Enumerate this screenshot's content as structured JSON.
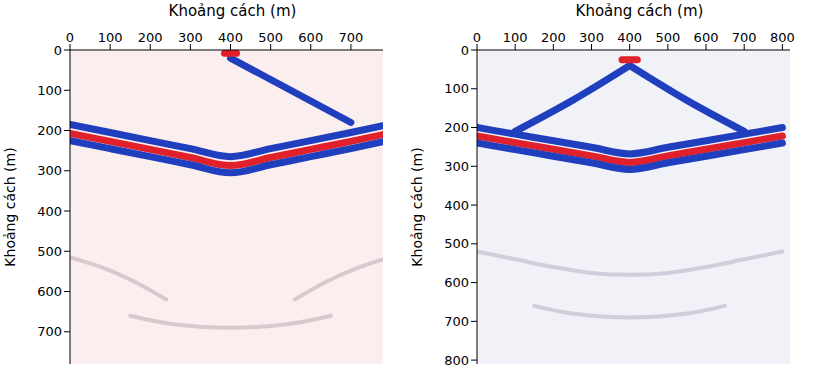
{
  "chart_data": [
    {
      "type": "line",
      "xlabel": "Khoảng cách (m)",
      "ylabel": "Khoảng cách (m)",
      "color": "#fbeeee",
      "xlim": [
        0,
        780
      ],
      "xticks": [
        0,
        100,
        200,
        300,
        400,
        500,
        600,
        700
      ],
      "ylim": [
        0,
        780
      ],
      "yticks": [
        0,
        100,
        200,
        300,
        400,
        500,
        600,
        700
      ],
      "grid": false,
      "marker": "none",
      "series": [
        {
          "color": "#1f3fbf",
          "x": [
            400,
            550,
            700
          ],
          "values": [
            20,
            100,
            180
          ]
        },
        {
          "color": "#e0202a",
          "x": [
            385,
            415
          ],
          "values": [
            8,
            8
          ]
        },
        {
          "color": "#1f3fbf",
          "x": [
            0,
            100,
            200,
            300,
            400,
            500,
            600,
            700,
            780
          ],
          "values": [
            185,
            205,
            225,
            245,
            265,
            245,
            225,
            205,
            188
          ]
        },
        {
          "color": "#e0202a",
          "x": [
            0,
            100,
            200,
            300,
            400,
            500,
            600,
            700,
            780
          ],
          "values": [
            207,
            227,
            247,
            267,
            287,
            267,
            247,
            227,
            210
          ]
        },
        {
          "color": "#1f3fbf",
          "x": [
            0,
            100,
            200,
            300,
            400,
            500,
            600,
            700,
            780
          ],
          "values": [
            225,
            245,
            265,
            285,
            305,
            285,
            265,
            245,
            228
          ]
        },
        {
          "color": "#d9c9cf",
          "x": [
            0,
            80,
            160,
            240
          ],
          "values": [
            515,
            540,
            575,
            620
          ]
        },
        {
          "color": "#d9c9cf",
          "x": [
            560,
            640,
            720,
            780
          ],
          "values": [
            620,
            575,
            540,
            520
          ]
        },
        {
          "color": "#d9c9cf",
          "x": [
            150,
            250,
            400,
            550,
            650
          ],
          "values": [
            660,
            680,
            690,
            680,
            660
          ]
        }
      ]
    },
    {
      "type": "line",
      "xlabel": "Khoảng cách (m)",
      "ylabel": "Khoảng cách (m)",
      "color": "#f1f1f8",
      "xlim": [
        0,
        820
      ],
      "xticks": [
        0,
        100,
        200,
        300,
        400,
        500,
        600,
        700,
        800
      ],
      "ylim": [
        0,
        810
      ],
      "yticks": [
        0,
        100,
        200,
        300,
        400,
        500,
        600,
        700,
        800
      ],
      "grid": false,
      "marker": "none",
      "series": [
        {
          "color": "#1f3fbf",
          "x": [
            400,
            250,
            100
          ],
          "values": [
            40,
            130,
            210
          ]
        },
        {
          "color": "#1f3fbf",
          "x": [
            400,
            550,
            700
          ],
          "values": [
            40,
            130,
            210
          ]
        },
        {
          "color": "#e0202a",
          "x": [
            380,
            420
          ],
          "values": [
            25,
            25
          ]
        },
        {
          "color": "#1f3fbf",
          "x": [
            0,
            100,
            200,
            300,
            400,
            500,
            600,
            700,
            800
          ],
          "values": [
            200,
            217,
            234,
            251,
            268,
            251,
            234,
            217,
            200
          ]
        },
        {
          "color": "#e0202a",
          "x": [
            0,
            100,
            200,
            300,
            400,
            500,
            600,
            700,
            800
          ],
          "values": [
            222,
            239,
            256,
            273,
            290,
            273,
            256,
            239,
            222
          ]
        },
        {
          "color": "#1f3fbf",
          "x": [
            0,
            100,
            200,
            300,
            400,
            500,
            600,
            700,
            800
          ],
          "values": [
            240,
            257,
            274,
            291,
            308,
            291,
            274,
            257,
            240
          ]
        },
        {
          "color": "#cfcfdc",
          "x": [
            0,
            100,
            200,
            300,
            400,
            500,
            600,
            700,
            800
          ],
          "values": [
            520,
            540,
            560,
            575,
            580,
            575,
            560,
            540,
            520
          ]
        },
        {
          "color": "#cfcfdc",
          "x": [
            150,
            250,
            400,
            550,
            650
          ],
          "values": [
            660,
            680,
            690,
            680,
            660
          ]
        }
      ]
    }
  ]
}
